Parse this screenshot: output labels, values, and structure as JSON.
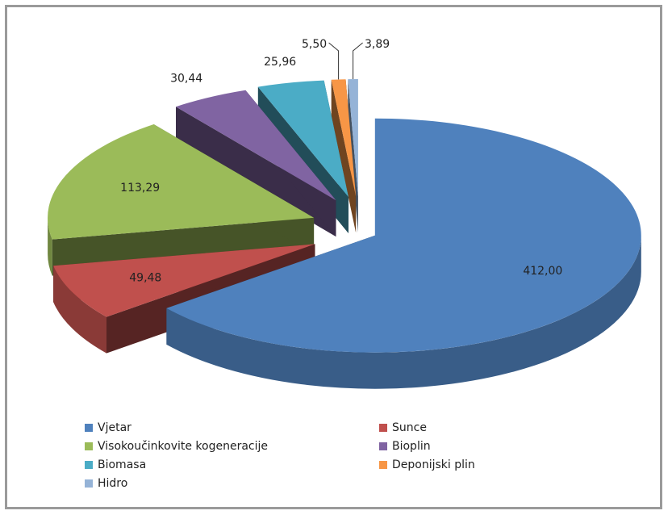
{
  "chart_data": {
    "type": "pie3d",
    "categories": [
      "Vjetar",
      "Sunce",
      "Visokoučinkovite kogeneracije",
      "Bioplin",
      "Biomasa",
      "Deponijski plin",
      "Hidro"
    ],
    "values": [
      412.0,
      49.48,
      113.29,
      30.44,
      25.96,
      5.5,
      3.89
    ],
    "value_labels": [
      "412,00",
      "49,48",
      "113,29",
      "30,44",
      "25,96",
      "5,50",
      "3,89"
    ],
    "colors": [
      "#4f81bd",
      "#c0504d",
      "#9bbb59",
      "#8064a2",
      "#4bacc6",
      "#f79646",
      "#95b3d7"
    ],
    "legend": "bottom"
  }
}
